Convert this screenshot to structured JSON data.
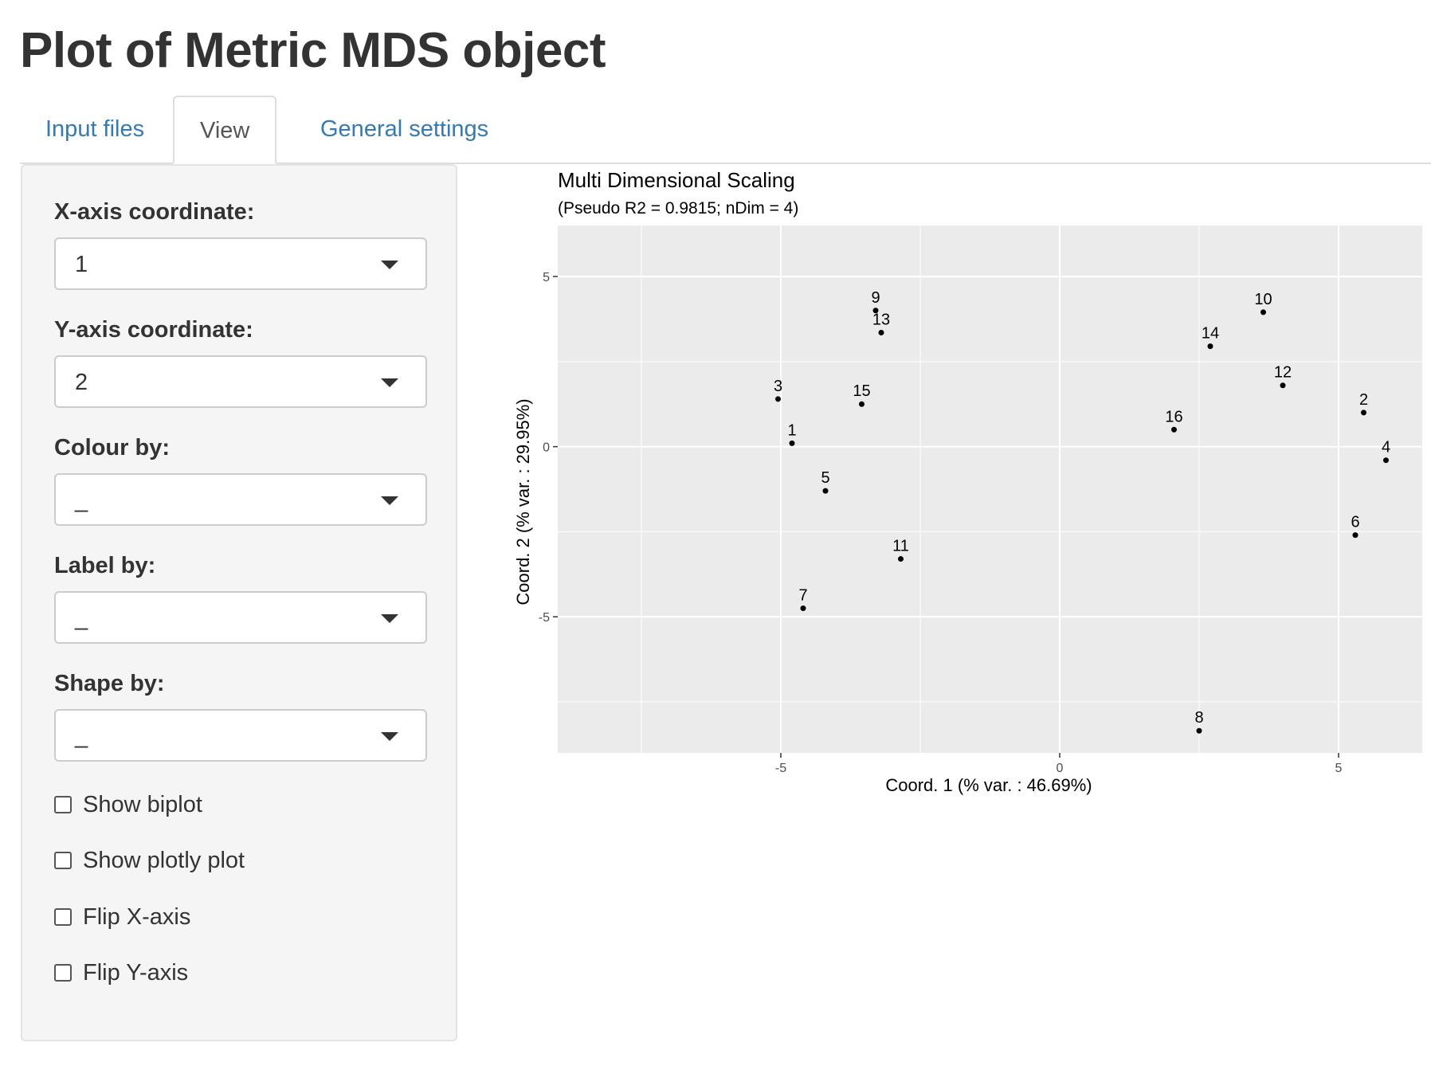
{
  "page_title": "Plot of Metric MDS object",
  "tabs": [
    {
      "label": "Input files",
      "active": false
    },
    {
      "label": "View",
      "active": true
    },
    {
      "label": "General settings",
      "active": false
    }
  ],
  "sidebar": {
    "x_axis": {
      "label": "X-axis coordinate:",
      "value": "1"
    },
    "y_axis": {
      "label": "Y-axis coordinate:",
      "value": "2"
    },
    "colour_by": {
      "label": "Colour by:",
      "value": "_"
    },
    "label_by": {
      "label": "Label by:",
      "value": "_"
    },
    "shape_by": {
      "label": "Shape by:",
      "value": "_"
    },
    "checkboxes": [
      {
        "label": "Show biplot",
        "checked": false
      },
      {
        "label": "Show plotly plot",
        "checked": false
      },
      {
        "label": "Flip X-axis",
        "checked": false
      },
      {
        "label": "Flip Y-axis",
        "checked": false
      }
    ]
  },
  "colors": {
    "tab_link": "#337ab7",
    "panel_bg": "#ebebeb",
    "grid": "#ffffff",
    "point": "#000000"
  },
  "chart_data": {
    "type": "scatter",
    "title": "Multi Dimensional Scaling",
    "subtitle": "(Pseudo R2 = 0.9815; nDim = 4)",
    "xlabel": "Coord. 1 (% var. : 46.69%)",
    "ylabel": "Coord. 2 (% var. : 29.95%)",
    "xlim": [
      -9,
      6.5
    ],
    "ylim": [
      -9,
      6.5
    ],
    "xticks": [
      -5,
      0,
      5
    ],
    "yticks": [
      -5,
      0,
      5
    ],
    "xtick_labels": [
      "-5",
      "0",
      "5"
    ],
    "ytick_labels": [
      "-5",
      "0",
      "5"
    ],
    "grid": true,
    "points": [
      {
        "label": "1",
        "x": -4.8,
        "y": 0.1
      },
      {
        "label": "2",
        "x": 5.45,
        "y": 1.0
      },
      {
        "label": "3",
        "x": -5.05,
        "y": 1.4
      },
      {
        "label": "4",
        "x": 5.85,
        "y": -0.4
      },
      {
        "label": "5",
        "x": -4.2,
        "y": -1.3
      },
      {
        "label": "6",
        "x": 5.3,
        "y": -2.6
      },
      {
        "label": "7",
        "x": -4.6,
        "y": -4.75
      },
      {
        "label": "8",
        "x": 2.5,
        "y": -8.35
      },
      {
        "label": "9",
        "x": -3.3,
        "y": 4.0
      },
      {
        "label": "10",
        "x": 3.65,
        "y": 3.95
      },
      {
        "label": "11",
        "x": -2.85,
        "y": -3.3
      },
      {
        "label": "12",
        "x": 4.0,
        "y": 1.8
      },
      {
        "label": "13",
        "x": -3.2,
        "y": 3.35
      },
      {
        "label": "14",
        "x": 2.7,
        "y": 2.95
      },
      {
        "label": "15",
        "x": -3.55,
        "y": 1.25
      },
      {
        "label": "16",
        "x": 2.05,
        "y": 0.5
      }
    ]
  }
}
